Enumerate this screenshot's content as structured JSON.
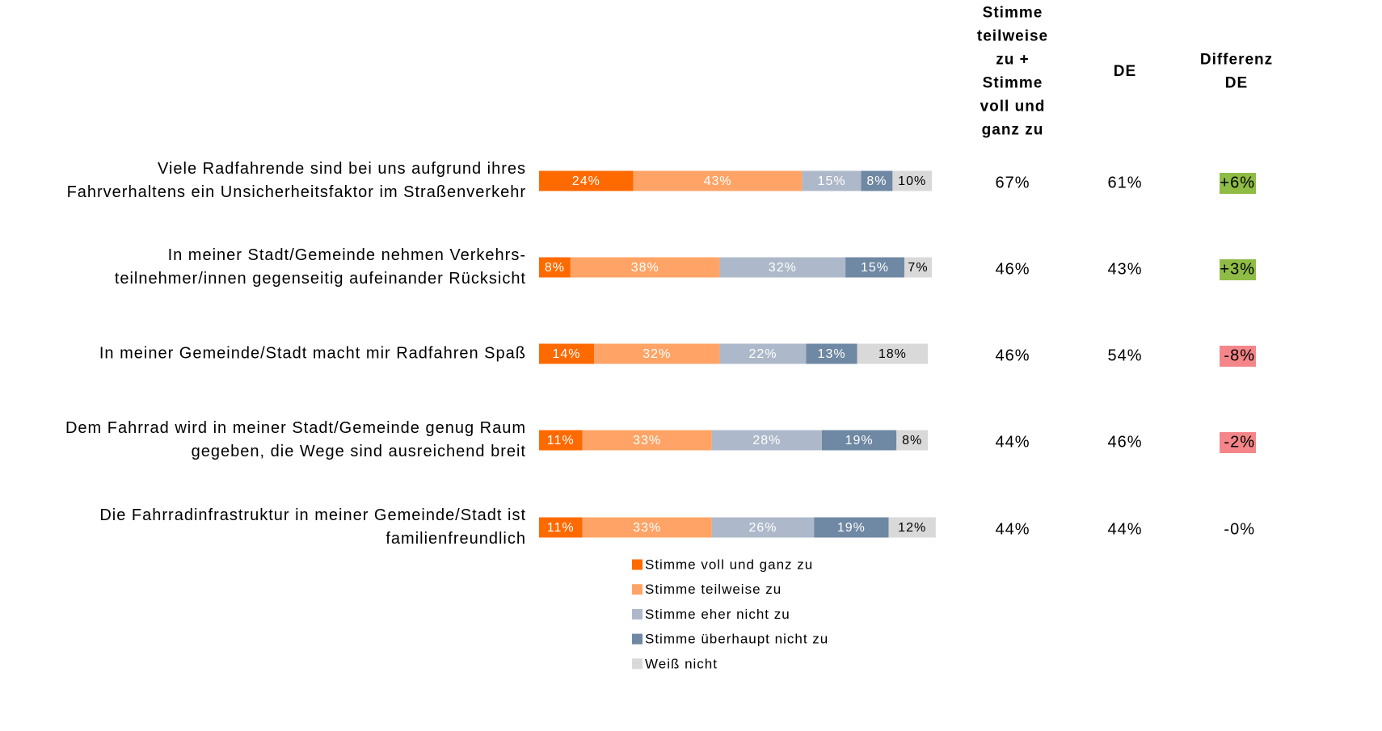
{
  "chart_data": {
    "type": "stacked-bar-horizontal",
    "categories": [
      [
        "Viele Radfahrende sind bei uns aufgrund ihres",
        "Fahrverhaltens ein Unsicherheitsfaktor im Straßenverkehr"
      ],
      [
        "In meiner Stadt/Gemeinde nehmen Verkehrs-",
        "teilnehmer/innen gegenseitig aufeinander Rücksicht"
      ],
      [
        "In meiner Gemeinde/Stadt macht mir Radfahren Spaß"
      ],
      [
        "Dem Fahrrad wird in meiner Stadt/Gemeinde genug Raum",
        "gegeben, die Wege sind ausreichend breit"
      ],
      [
        "Die Fahrradinfrastruktur in meiner Gemeinde/Stadt ist",
        "familienfreundlich"
      ]
    ],
    "xlim": [
      0,
      100
    ],
    "series": [
      {
        "name": "Stimme voll und ganz zu",
        "color": "#ff6a00",
        "label_color": "#ffffff",
        "values": [
          24,
          8,
          14,
          11,
          11
        ],
        "value_labels": [
          "24%",
          "8%",
          "14%",
          "11%",
          "11%"
        ]
      },
      {
        "name": "Stimme teilweise zu",
        "color": "#ffa466",
        "label_color": "#ffffff",
        "values": [
          43,
          38,
          32,
          33,
          33
        ],
        "value_labels": [
          "43%",
          "38%",
          "32%",
          "33%",
          "33%"
        ]
      },
      {
        "name": "Stimme eher nicht zu",
        "color": "#adb9ca",
        "label_color": "#ffffff",
        "values": [
          15,
          32,
          22,
          28,
          26
        ],
        "value_labels": [
          "15%",
          "32%",
          "22%",
          "28%",
          "26%"
        ]
      },
      {
        "name": "Stimme überhaupt nicht zu",
        "color": "#6f88a3",
        "label_color": "#ffffff",
        "values": [
          8,
          15,
          13,
          19,
          19
        ],
        "value_labels": [
          "8%",
          "15%",
          "13%",
          "19%",
          "19%"
        ]
      },
      {
        "name": "Weiß nicht",
        "color": "#d9d9d9",
        "label_color": "#000000",
        "values": [
          10,
          7,
          18,
          8,
          12
        ],
        "value_labels": [
          "10%",
          "7%",
          "18%",
          "8%",
          "12%"
        ]
      }
    ],
    "table_columns": [
      {
        "header": [
          "Stimme",
          "teilweise",
          "zu +",
          "Stimme",
          "voll und",
          "ganz zu"
        ],
        "values": [
          67,
          46,
          46,
          44,
          44
        ],
        "value_labels": [
          "67%",
          "46%",
          "46%",
          "44%",
          "44%"
        ]
      },
      {
        "header": [
          "DE"
        ],
        "values": [
          61,
          43,
          54,
          46,
          44
        ],
        "value_labels": [
          "61%",
          "43%",
          "54%",
          "46%",
          "44%"
        ]
      },
      {
        "header": [
          "Differenz",
          "DE"
        ],
        "values": [
          6,
          3,
          -8,
          -2,
          0
        ],
        "value_labels": [
          "+6%",
          "+3%",
          "-8%",
          "-2%",
          "-0%"
        ],
        "positive_color": "#8fbc45",
        "negative_color": "#f4868a"
      }
    ]
  }
}
